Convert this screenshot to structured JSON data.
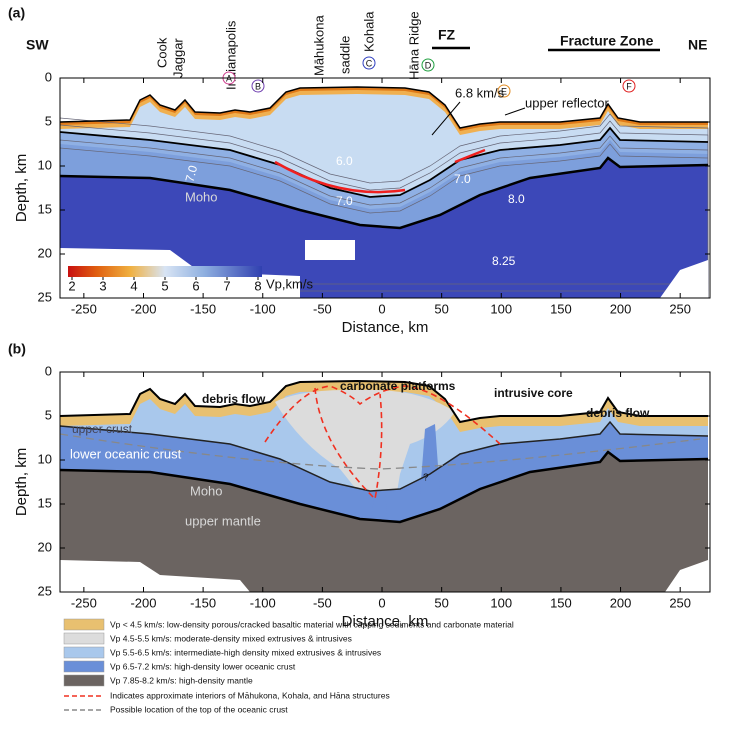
{
  "panels": [
    {
      "label": "(a)",
      "xlabel": "Distance, km",
      "ylabel": "Depth, km",
      "xlim": [
        -270,
        275
      ],
      "xticks": [
        -250,
        -200,
        -150,
        -100,
        -50,
        0,
        50,
        100,
        150,
        200,
        250
      ],
      "ylim": [
        0,
        25
      ],
      "yticks": [
        0,
        5,
        10,
        15,
        20,
        25
      ],
      "annotations": [
        "SW",
        "NE",
        "Cook",
        "Jaggar",
        "Indianapolis",
        "Māhukona",
        "saddle",
        "Kohala",
        "Hāna Ridge",
        "FZ",
        "Fracture Zone",
        "A",
        "B",
        "C",
        "D",
        "E",
        "F",
        "6.8 km/s",
        "upper reflector",
        "6.0",
        "7.0",
        "7.0",
        "8.0",
        "Moho",
        "7.0",
        "8.25"
      ]
    },
    {
      "label": "(b)",
      "xlabel": "Distance, km",
      "ylabel": "Depth, km",
      "xlim": [
        -270,
        275
      ],
      "xticks": [
        -250,
        -200,
        -150,
        -100,
        -50,
        0,
        50,
        100,
        150,
        200,
        250
      ],
      "ylim": [
        0,
        25
      ],
      "yticks": [
        0,
        5,
        10,
        15,
        20,
        25
      ],
      "annotations": [
        "debris flow",
        "carbonate platforms",
        "intrusive core",
        "debris flow",
        "upper crust",
        "lower oceanic crust",
        "Moho",
        "upper mantle",
        "?"
      ]
    }
  ],
  "colorbar": {
    "lim": [
      2,
      8
    ],
    "ticks": [
      2,
      3,
      4,
      5,
      6,
      7,
      8
    ],
    "label": "Vp,km/s"
  },
  "legend": [
    "Vp < 4.5 km/s: low-density porous/cracked basaltic material with capping sediments and carbonate material",
    "Vp 4.5-5.5 km/s: moderate-density mixed extrusives & intrusives",
    "Vp 5.5-6.5 km/s: intermediate-high density mixed extrusives & intrusives",
    "Vp 6.5-7.2 km/s: high-density lower oceanic crust",
    "Vp 7.85-8.2 km/s: high-density mantle",
    "Indicates approximate interiors of Māhukona, Kohala, and Hāna structures",
    "Possible location of the top of the oceanic crust"
  ]
}
